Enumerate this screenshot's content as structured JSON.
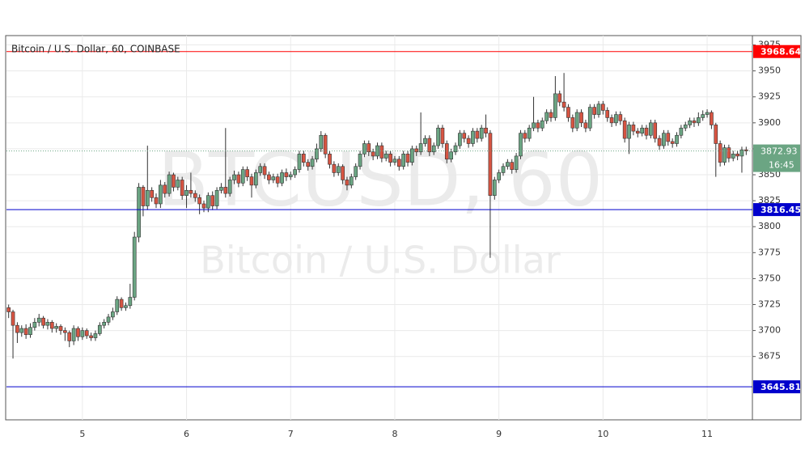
{
  "chart_data": {
    "type": "candlestick",
    "title": "Bitcoin / U.S. Dollar, 60, COINBASE",
    "watermark": "BTCUSD, 60",
    "watermark_subtitle": "Bitcoin / U.S. Dollar",
    "categories": [
      null,
      null,
      null,
      null,
      null,
      null,
      null,
      null,
      null,
      null,
      null,
      null,
      null,
      null,
      null,
      null,
      null,
      "5",
      null,
      null,
      null,
      null,
      null,
      null,
      null,
      null,
      null,
      null,
      null,
      null,
      null,
      null,
      null,
      null,
      null,
      null,
      null,
      null,
      null,
      null,
      null,
      "6",
      null,
      null,
      null,
      null,
      null,
      null,
      null,
      null,
      null,
      null,
      null,
      null,
      null,
      null,
      null,
      null,
      null,
      null,
      null,
      null,
      null,
      null,
      null,
      "7",
      null,
      null,
      null,
      null,
      null,
      null,
      null,
      null,
      null,
      null,
      null,
      null,
      null,
      null,
      null,
      null,
      null,
      null,
      null,
      null,
      null,
      null,
      null,
      "8",
      null,
      null,
      null,
      null,
      null,
      null,
      null,
      null,
      null,
      null,
      null,
      null,
      null,
      null,
      null,
      null,
      null,
      null,
      null,
      null,
      null,
      null,
      null,
      "9",
      null,
      null,
      null,
      null,
      null,
      null,
      null,
      null,
      null,
      null,
      null,
      null,
      null,
      null,
      null,
      null,
      null,
      null,
      null,
      null,
      null,
      null,
      null,
      "10",
      null,
      null,
      null,
      null,
      null,
      null,
      null,
      null,
      null,
      null,
      null,
      null,
      null,
      null,
      null,
      null,
      null,
      null,
      null,
      null,
      null,
      null,
      null,
      "11",
      null,
      null,
      null,
      null,
      null,
      null,
      null,
      null,
      null
    ],
    "open": [
      3722,
      3718,
      3705,
      3698,
      3702,
      3696,
      3703,
      3708,
      3712,
      3705,
      3708,
      3702,
      3704,
      3700,
      3698,
      3690,
      3702,
      3694,
      3700,
      3695,
      3693,
      3697,
      3705,
      3708,
      3713,
      3718,
      3730,
      3722,
      3724,
      3732,
      3790,
      3838,
      3820,
      3835,
      3828,
      3822,
      3840,
      3832,
      3850,
      3838,
      3845,
      3830,
      3835,
      3832,
      3828,
      3822,
      3818,
      3830,
      3820,
      3835,
      3838,
      3832,
      3845,
      3850,
      3842,
      3855,
      3848,
      3840,
      3852,
      3858,
      3850,
      3845,
      3848,
      3842,
      3852,
      3848,
      3850,
      3855,
      3870,
      3862,
      3858,
      3865,
      3875,
      3888,
      3870,
      3860,
      3852,
      3858,
      3845,
      3840,
      3848,
      3858,
      3870,
      3880,
      3872,
      3868,
      3878,
      3866,
      3870,
      3862,
      3865,
      3858,
      3870,
      3862,
      3875,
      3872,
      3880,
      3885,
      3872,
      3878,
      3895,
      3880,
      3865,
      3872,
      3878,
      3890,
      3885,
      3880,
      3892,
      3885,
      3895,
      3890,
      3830,
      3845,
      3852,
      3858,
      3862,
      3855,
      3868,
      3890,
      3885,
      3895,
      3900,
      3895,
      3902,
      3910,
      3905,
      3928,
      3920,
      3915,
      3905,
      3895,
      3910,
      3900,
      3895,
      3915,
      3908,
      3918,
      3912,
      3905,
      3900,
      3908,
      3902,
      3885,
      3898,
      3892,
      3890,
      3895,
      3888,
      3900,
      3885,
      3878,
      3890,
      3882,
      3880,
      3888,
      3895,
      3898,
      3902,
      3900,
      3905,
      3908,
      3910,
      3898,
      3880,
      3862,
      3876,
      3866,
      3870,
      3868,
      3874
    ],
    "high": [
      3725,
      3720,
      3708,
      3705,
      3706,
      3707,
      3712,
      3716,
      3714,
      3711,
      3710,
      3707,
      3706,
      3703,
      3700,
      3705,
      3704,
      3703,
      3702,
      3698,
      3700,
      3708,
      3711,
      3716,
      3722,
      3733,
      3732,
      3727,
      3745,
      3795,
      3842,
      3840,
      3878,
      3838,
      3832,
      3845,
      3843,
      3853,
      3852,
      3848,
      3848,
      3840,
      3852,
      3835,
      3831,
      3825,
      3833,
      3834,
      3838,
      3842,
      3895,
      3848,
      3854,
      3853,
      3858,
      3858,
      3851,
      3855,
      3861,
      3861,
      3853,
      3851,
      3851,
      3855,
      3856,
      3853,
      3858,
      3873,
      3873,
      3865,
      3868,
      3880,
      3892,
      3890,
      3873,
      3863,
      3861,
      3860,
      3848,
      3851,
      3861,
      3873,
      3883,
      3883,
      3875,
      3881,
      3881,
      3873,
      3873,
      3868,
      3868,
      3873,
      3873,
      3878,
      3878,
      3910,
      3888,
      3888,
      3881,
      3898,
      3898,
      3883,
      3875,
      3881,
      3893,
      3893,
      3888,
      3895,
      3895,
      3898,
      3908,
      3893,
      3848,
      3855,
      3861,
      3865,
      3865,
      3871,
      3893,
      3893,
      3898,
      3925,
      3903,
      3905,
      3913,
      3913,
      3945,
      3931,
      3948,
      3918,
      3908,
      3913,
      3913,
      3903,
      3918,
      3918,
      3921,
      3921,
      3915,
      3908,
      3911,
      3911,
      3905,
      3901,
      3901,
      3895,
      3898,
      3898,
      3903,
      3903,
      3888,
      3893,
      3893,
      3885,
      3891,
      3898,
      3901,
      3905,
      3905,
      3910,
      3912,
      3913,
      3912,
      3900,
      3883,
      3879,
      3879,
      3873,
      3873,
      3877,
      3877
    ],
    "low": [
      3712,
      3673,
      3688,
      3694,
      3692,
      3693,
      3700,
      3704,
      3702,
      3701,
      3698,
      3698,
      3696,
      3690,
      3684,
      3686,
      3690,
      3691,
      3692,
      3690,
      3690,
      3695,
      3702,
      3705,
      3710,
      3715,
      3719,
      3719,
      3721,
      3729,
      3785,
      3810,
      3816,
      3824,
      3818,
      3818,
      3828,
      3829,
      3834,
      3835,
      3826,
      3818,
      3828,
      3824,
      3812,
      3814,
      3814,
      3816,
      3817,
      3832,
      3828,
      3829,
      3841,
      3838,
      3839,
      3844,
      3828,
      3837,
      3849,
      3846,
      3841,
      3842,
      3838,
      3839,
      3844,
      3845,
      3847,
      3852,
      3858,
      3854,
      3855,
      3862,
      3872,
      3866,
      3856,
      3848,
      3849,
      3841,
      3835,
      3837,
      3845,
      3855,
      3867,
      3868,
      3864,
      3865,
      3862,
      3863,
      3858,
      3859,
      3854,
      3855,
      3858,
      3859,
      3868,
      3869,
      3877,
      3868,
      3869,
      3875,
      3876,
      3861,
      3862,
      3869,
      3875,
      3881,
      3876,
      3877,
      3881,
      3882,
      3886,
      3770,
      3826,
      3842,
      3849,
      3855,
      3851,
      3852,
      3865,
      3881,
      3882,
      3892,
      3891,
      3892,
      3899,
      3901,
      3902,
      3916,
      3911,
      3901,
      3891,
      3892,
      3896,
      3891,
      3892,
      3904,
      3905,
      3908,
      3901,
      3896,
      3897,
      3898,
      3881,
      3870,
      3888,
      3886,
      3887,
      3884,
      3885,
      3881,
      3874,
      3875,
      3878,
      3876,
      3877,
      3885,
      3892,
      3895,
      3896,
      3897,
      3902,
      3905,
      3894,
      3848,
      3858,
      3859,
      3862,
      3863,
      3864,
      3852,
      3869
    ],
    "close": [
      3718,
      3705,
      3698,
      3702,
      3696,
      3703,
      3708,
      3712,
      3705,
      3708,
      3702,
      3704,
      3700,
      3698,
      3690,
      3702,
      3694,
      3700,
      3695,
      3693,
      3697,
      3705,
      3708,
      3713,
      3718,
      3730,
      3722,
      3724,
      3732,
      3790,
      3838,
      3820,
      3835,
      3828,
      3822,
      3840,
      3832,
      3850,
      3838,
      3845,
      3830,
      3835,
      3832,
      3828,
      3822,
      3818,
      3830,
      3820,
      3835,
      3838,
      3832,
      3845,
      3850,
      3842,
      3855,
      3848,
      3840,
      3852,
      3858,
      3850,
      3845,
      3848,
      3842,
      3852,
      3848,
      3850,
      3855,
      3870,
      3862,
      3858,
      3865,
      3875,
      3888,
      3870,
      3860,
      3852,
      3858,
      3845,
      3840,
      3848,
      3858,
      3870,
      3880,
      3872,
      3868,
      3878,
      3866,
      3870,
      3862,
      3865,
      3858,
      3870,
      3862,
      3875,
      3872,
      3880,
      3885,
      3872,
      3878,
      3895,
      3880,
      3865,
      3872,
      3878,
      3890,
      3885,
      3880,
      3892,
      3885,
      3895,
      3890,
      3830,
      3845,
      3852,
      3858,
      3862,
      3855,
      3868,
      3890,
      3885,
      3895,
      3900,
      3895,
      3902,
      3910,
      3905,
      3928,
      3920,
      3915,
      3905,
      3895,
      3910,
      3900,
      3895,
      3915,
      3908,
      3918,
      3912,
      3905,
      3900,
      3908,
      3902,
      3885,
      3898,
      3892,
      3890,
      3895,
      3888,
      3900,
      3885,
      3878,
      3890,
      3882,
      3880,
      3888,
      3895,
      3898,
      3902,
      3900,
      3905,
      3908,
      3910,
      3898,
      3880,
      3862,
      3876,
      3866,
      3870,
      3868,
      3874,
      3872.93
    ],
    "up_color": "#6ba583",
    "down_color": "#d75442",
    "ylim": [
      3614,
      3984
    ],
    "yticks": [
      3675,
      3700,
      3725,
      3750,
      3775,
      3800,
      3825,
      3850,
      3875,
      3900,
      3925,
      3950,
      3975
    ],
    "grid": true,
    "levels": [
      {
        "value": 3968.64,
        "color": "#ff0000"
      },
      {
        "value": 3816.45,
        "color": "#0000cc"
      },
      {
        "value": 3645.81,
        "color": "#0000cc"
      }
    ],
    "last_price": {
      "value": 3872.93,
      "color": "#6ba583",
      "countdown": "16:45"
    }
  }
}
